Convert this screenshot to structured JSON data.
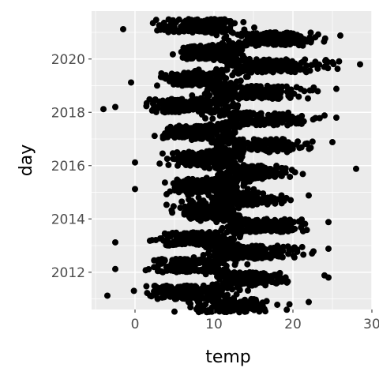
{
  "chart_data": {
    "type": "scatter",
    "title": "",
    "xlabel": "temp",
    "ylabel": "day",
    "xlim": [
      -5.5,
      30.0
    ],
    "ylim": [
      2010.6,
      2021.8
    ],
    "x_ticks": [
      0,
      10,
      20,
      30
    ],
    "y_ticks": [
      2012,
      2014,
      2016,
      2018,
      2020
    ],
    "grid": true,
    "point_color": "#000000",
    "panel_background": "#ebebeb",
    "grid_color": "#ffffff",
    "series": [
      {
        "bands": [
          {
            "year": 2011,
            "warm_half": [
              1.0,
              20.5
            ],
            "cool_half": [
              -3.5,
              15.0
            ],
            "warm_outliers": [
              22.0
            ],
            "cool_outliers": [
              -3.5
            ]
          },
          {
            "year": 2012,
            "warm_half": [
              4.5,
              21.5
            ],
            "cool_half": [
              -2.5,
              15.0
            ],
            "warm_outliers": [
              24.0,
              24.5
            ],
            "cool_outliers": [
              -2.5
            ]
          },
          {
            "year": 2013,
            "warm_half": [
              3.0,
              24.0
            ],
            "cool_half": [
              -2.0,
              16.0
            ],
            "warm_outliers": [
              24.5
            ],
            "cool_outliers": [
              -2.5
            ]
          },
          {
            "year": 2014,
            "warm_half": [
              4.0,
              24.5
            ],
            "cool_half": [
              2.0,
              14.5
            ],
            "warm_outliers": [
              24.5
            ],
            "cool_outliers": []
          },
          {
            "year": 2015,
            "warm_half": [
              1.0,
              21.5
            ],
            "cool_half": [
              0.0,
              16.5
            ],
            "warm_outliers": [
              22.0
            ],
            "cool_outliers": [
              0.0
            ]
          },
          {
            "year": 2016,
            "warm_half": [
              4.0,
              22.0
            ],
            "cool_half": [
              0.0,
              16.0
            ],
            "warm_outliers": [
              28.0
            ],
            "cool_outliers": [
              0.0
            ]
          },
          {
            "year": 2017,
            "warm_half": [
              2.5,
              25.0
            ],
            "cool_half": [
              -0.5,
              15.0
            ],
            "warm_outliers": [
              25.0
            ],
            "cool_outliers": []
          },
          {
            "year": 2018,
            "warm_half": [
              3.0,
              25.5
            ],
            "cool_half": [
              -4.0,
              16.0
            ],
            "warm_outliers": [
              24.0,
              25.5
            ],
            "cool_outliers": [
              -4.0,
              -2.5
            ]
          },
          {
            "year": 2019,
            "warm_half": [
              2.0,
              25.0
            ],
            "cool_half": [
              -0.5,
              15.5
            ],
            "warm_outliers": [
              25.5
            ],
            "cool_outliers": [
              -0.5
            ]
          },
          {
            "year": 2020,
            "warm_half": [
              3.0,
              28.5
            ],
            "cool_half": [
              2.0,
              15.5
            ],
            "warm_outliers": [
              25.0,
              28.5
            ],
            "cool_outliers": []
          },
          {
            "year": 2021,
            "warm_half": [
              5.0,
              27.5
            ],
            "cool_half": [
              -1.5,
              15.5
            ],
            "warm_outliers": [
              26.0
            ],
            "cool_outliers": [
              -1.5
            ]
          }
        ]
      }
    ]
  }
}
